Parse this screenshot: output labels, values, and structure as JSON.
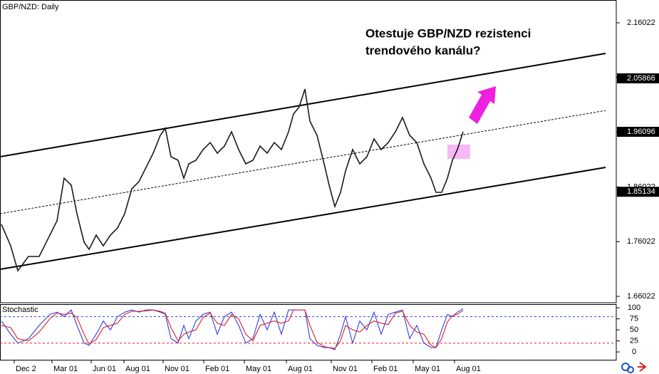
{
  "chart_data": [
    {
      "type": "line",
      "title": "GBP/NZD: Daily",
      "annotation": [
        "Otestuje GBP/NZD rezistenci",
        "trendového kanálu?"
      ],
      "x": [
        0.4,
        3,
        5,
        8,
        11,
        14,
        16,
        18,
        20,
        21.6,
        23.6,
        25,
        27,
        29,
        31,
        33,
        35,
        37,
        39,
        41,
        43,
        45,
        46.4,
        48,
        50,
        51.6,
        53,
        55,
        57,
        59,
        61,
        63,
        65,
        67,
        69,
        71,
        73,
        75,
        77,
        79,
        81,
        82.4,
        84,
        85.6,
        87,
        89,
        91,
        92.4,
        94,
        95.6,
        97,
        99,
        101,
        103,
        105,
        107,
        109,
        111,
        113,
        115,
        117,
        119,
        121,
        122.4,
        124,
        125.6,
        127,
        128.4,
        130
      ],
      "series": [
        {
          "color": "#1a1a1a",
          "values": [
            1.7917,
            1.7526,
            1.7071,
            1.7331,
            1.7331,
            1.7722,
            1.7982,
            1.8763,
            1.8633,
            1.8112,
            1.7592,
            1.7461,
            1.7722,
            1.7526,
            1.7722,
            1.7852,
            1.8112,
            1.8568,
            1.8698,
            1.8959,
            1.9219,
            1.9545,
            1.9675,
            1.9154,
            1.9089,
            1.8763,
            1.9024,
            1.9089,
            1.9284,
            1.9414,
            1.9219,
            1.9349,
            1.961,
            1.9284,
            1.9024,
            1.9089,
            1.9349,
            1.9219,
            1.9414,
            1.9284,
            1.961,
            1.9935,
            2.0066,
            2.0391,
            1.9805,
            1.9545,
            1.9024,
            1.8633,
            1.8243,
            1.8503,
            1.8894,
            1.9284,
            1.9024,
            1.9154,
            1.948,
            1.9284,
            1.9414,
            1.961,
            1.987,
            1.9545,
            1.9414,
            1.9024,
            1.8763,
            1.8503,
            1.8503,
            1.8763,
            1.9089,
            1.9284,
            1.961
          ]
        }
      ],
      "channel": {
        "x": [
          0,
          170
        ],
        "upper": [
          1.9154,
          2.1042
        ],
        "middle": [
          1.8112,
          1.9999
        ],
        "lower": [
          1.7097,
          1.8959
        ]
      },
      "price_labels": [
        2.05866,
        1.96096,
        1.85134
      ],
      "xlim": [
        0,
        173
      ],
      "ylim": [
        1.6485,
        2.2019
      ],
      "yticks": [
        1.66022,
        1.76022,
        1.86022,
        1.96022,
        2.06022,
        2.16022
      ],
      "xticks": [
        {
          "value": 4,
          "label": "Dec 2"
        },
        {
          "value": 14.6,
          "label": "Mar 01"
        },
        {
          "value": 25.6,
          "label": "Jun 01"
        },
        {
          "value": 34.8,
          "label": "Aug 01"
        },
        {
          "value": 45.8,
          "label": "Nov 01"
        },
        {
          "value": 57.2,
          "label": "Feb 01"
        },
        {
          "value": 68.6,
          "label": "May 01"
        },
        {
          "value": 80.4,
          "label": "Aug 01"
        },
        {
          "value": 93,
          "label": "Nov 01"
        },
        {
          "value": 104.4,
          "label": "Feb 01"
        },
        {
          "value": 116,
          "label": "May 01"
        },
        {
          "value": 127.6,
          "label": "Aug 01"
        }
      ]
    },
    {
      "type": "line",
      "title": "Stochastic",
      "series": [
        {
          "color": "#3040e0",
          "values": [
            70,
            40,
            20,
            30,
            60,
            85,
            90,
            80,
            95,
            60,
            20,
            15,
            40,
            70,
            50,
            80,
            90,
            95,
            90,
            95,
            95,
            90,
            85,
            30,
            20,
            60,
            30,
            70,
            85,
            90,
            40,
            80,
            90,
            60,
            20,
            30,
            85,
            50,
            90,
            40,
            95,
            95,
            95,
            95,
            30,
            15,
            10,
            10,
            5,
            40,
            80,
            20,
            70,
            50,
            90,
            40,
            85,
            90,
            95,
            30,
            60,
            20,
            10,
            10,
            50,
            85,
            80,
            90,
            98
          ]
        },
        {
          "color": "#e02020",
          "values": [
            60,
            55,
            30,
            25,
            45,
            75,
            88,
            85,
            88,
            78,
            40,
            18,
            28,
            55,
            60,
            65,
            85,
            92,
            92,
            93,
            95,
            92,
            88,
            55,
            25,
            40,
            45,
            50,
            78,
            88,
            65,
            60,
            85,
            75,
            40,
            25,
            60,
            65,
            70,
            65,
            70,
            95,
            95,
            95,
            60,
            22,
            12,
            10,
            8,
            25,
            60,
            50,
            45,
            60,
            70,
            65,
            62,
            88,
            92,
            60,
            45,
            40,
            15,
            10,
            30,
            68,
            82,
            85,
            94
          ]
        }
      ],
      "levels": [
        {
          "value": 80,
          "color": "#3040e0"
        },
        {
          "value": 20,
          "color": "#e02020"
        }
      ],
      "ylim": [
        -17.7,
        106.5
      ],
      "yticks": [
        0,
        25,
        50,
        75,
        100
      ]
    }
  ]
}
